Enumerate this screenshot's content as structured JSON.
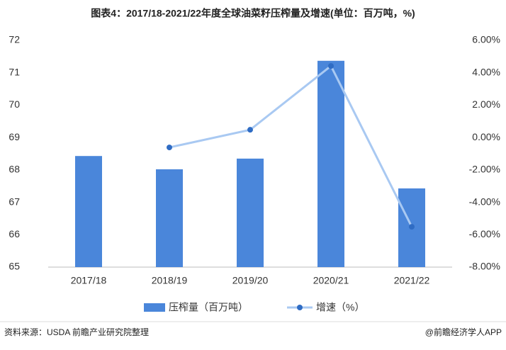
{
  "chart_data": {
    "type": "bar_line",
    "title": "图表4：2017/18-2021/22年度全球油菜籽压榨量及增速(单位：百万吨，%)",
    "categories": [
      "2017/18",
      "2018/19",
      "2019/20",
      "2020/21",
      "2021/22"
    ],
    "series": [
      {
        "name": "压榨量（百万吨）",
        "type": "bar",
        "color": "#4a86da",
        "values": [
          68.43,
          68.02,
          68.35,
          71.37,
          67.43
        ]
      },
      {
        "name": "增速（%）",
        "type": "line",
        "axis": "y2",
        "color": "#a9c9f2",
        "marker_color": "#2f6cc4",
        "values": [
          null,
          -0.61,
          0.48,
          4.42,
          -5.51
        ]
      }
    ],
    "ylim": [
      65,
      72
    ],
    "yticks": [
      65,
      66,
      67,
      68,
      69,
      70,
      71,
      72
    ],
    "y2lim": [
      -8,
      6
    ],
    "y2ticks": [
      {
        "value": -8,
        "label": "-8.00%"
      },
      {
        "value": -6,
        "label": "-6.00%"
      },
      {
        "value": -4,
        "label": "-4.00%"
      },
      {
        "value": -2,
        "label": "-2.00%"
      },
      {
        "value": 0,
        "label": "0.00%"
      },
      {
        "value": 2,
        "label": "2.00%"
      },
      {
        "value": 4,
        "label": "4.00%"
      },
      {
        "value": 6,
        "label": "6.00%"
      }
    ],
    "source": "资料来源：USDA 前瞻产业研究院整理",
    "footer": "@前瞻经济学人APP"
  }
}
